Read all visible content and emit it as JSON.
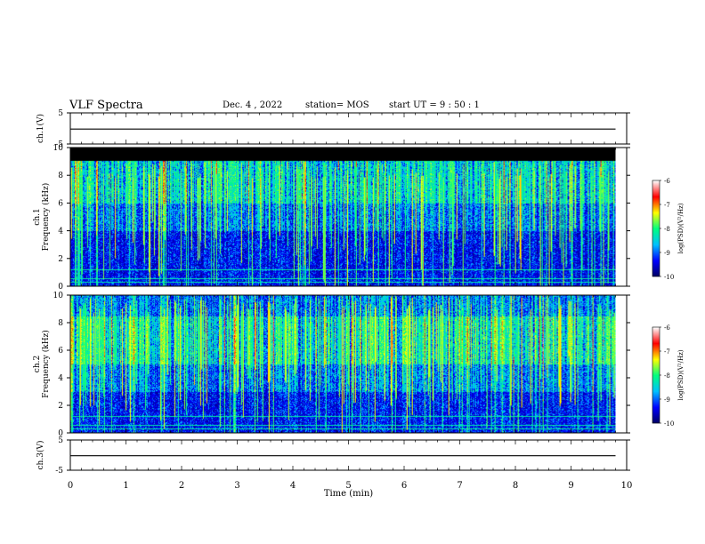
{
  "header": {
    "title": "VLF Spectra",
    "date": "Dec. 4  , 2022",
    "station": "station= MOS",
    "start": "start  UT  =  9 : 50 : 1"
  },
  "chart_data": [
    {
      "type": "line",
      "panel": "ch1-voltage",
      "ylabel": "ch.1(V)",
      "ylim": [
        -5,
        5
      ],
      "yticks": [
        5,
        -5
      ],
      "x": [
        0,
        9.8
      ],
      "values": [
        -0.2,
        -0.2
      ]
    },
    {
      "type": "heatmap",
      "panel": "ch1-spectrogram",
      "ylabel": "ch.1\nFrequency (kHz)",
      "ylim": [
        0,
        10
      ],
      "yticks": [
        0,
        2,
        4,
        6,
        8,
        10
      ],
      "colorbar": {
        "label": "log(PSD)(V²/Hz)",
        "range": [
          -10,
          -6
        ],
        "ticks": [
          -6,
          -7,
          -8,
          -9,
          -10
        ]
      },
      "band_top_khz": 9,
      "x_range_min": [
        0,
        9.8
      ]
    },
    {
      "type": "heatmap",
      "panel": "ch2-spectrogram",
      "ylabel": "ch.2\nFrequency (kHz)",
      "ylim": [
        0,
        10
      ],
      "yticks": [
        0,
        2,
        4,
        6,
        8,
        10
      ],
      "colorbar": {
        "label": "log(PSD)(V²/Hz)",
        "range": [
          -10,
          -6
        ],
        "ticks": [
          -6,
          -7,
          -8,
          -9,
          -10
        ]
      },
      "band_top_khz": 10,
      "x_range_min": [
        0,
        9.8
      ]
    },
    {
      "type": "line",
      "panel": "ch3-voltage",
      "ylabel": "ch.3(V)",
      "ylim": [
        -5,
        5
      ],
      "yticks": [
        5,
        -5
      ],
      "x": [
        0,
        9.8
      ],
      "values": [
        -0.2,
        -0.2
      ]
    }
  ],
  "xaxis": {
    "label": "Time  (min)",
    "xlim": [
      0,
      10
    ],
    "ticks": [
      "0",
      "1",
      "2",
      "3",
      "4",
      "5",
      "6",
      "7",
      "8",
      "9",
      "10"
    ]
  },
  "colors": {
    "background": "#000080",
    "colormap": [
      "#000060",
      "#0000ff",
      "#00c0ff",
      "#00ff80",
      "#ffff00",
      "#ff0000",
      "#ffffff"
    ]
  }
}
